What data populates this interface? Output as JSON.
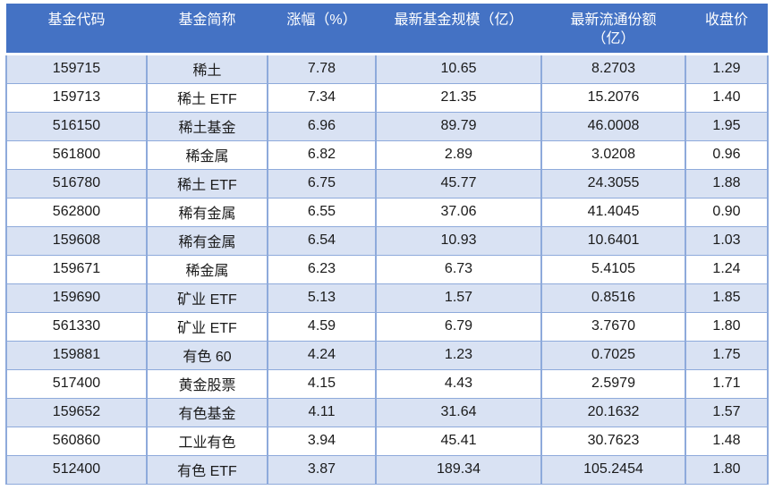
{
  "chart_data": {
    "type": "table",
    "columns": [
      "基金代码",
      "基金简称",
      "涨幅（%）",
      "最新基金规模（亿）",
      "最新流通份额\n（亿）",
      "收盘价"
    ],
    "rows": [
      [
        "159715",
        "稀土",
        "7.78",
        "10.65",
        "8.2703",
        "1.29"
      ],
      [
        "159713",
        "稀土 ETF",
        "7.34",
        "21.35",
        "15.2076",
        "1.40"
      ],
      [
        "516150",
        "稀土基金",
        "6.96",
        "89.79",
        "46.0008",
        "1.95"
      ],
      [
        "561800",
        "稀金属",
        "6.82",
        "2.89",
        "3.0208",
        "0.96"
      ],
      [
        "516780",
        "稀土 ETF",
        "6.75",
        "45.77",
        "24.3055",
        "1.88"
      ],
      [
        "562800",
        "稀有金属",
        "6.55",
        "37.06",
        "41.4045",
        "0.90"
      ],
      [
        "159608",
        "稀有金属",
        "6.54",
        "10.93",
        "10.6401",
        "1.03"
      ],
      [
        "159671",
        "稀金属",
        "6.23",
        "6.73",
        "5.4105",
        "1.24"
      ],
      [
        "159690",
        "矿业 ETF",
        "5.13",
        "1.57",
        "0.8516",
        "1.85"
      ],
      [
        "561330",
        "矿业 ETF",
        "4.59",
        "6.79",
        "3.7670",
        "1.80"
      ],
      [
        "159881",
        "有色 60",
        "4.24",
        "1.23",
        "0.7025",
        "1.75"
      ],
      [
        "517400",
        "黄金股票",
        "4.15",
        "4.43",
        "2.5979",
        "1.71"
      ],
      [
        "159652",
        "有色基金",
        "4.11",
        "31.64",
        "20.1632",
        "1.57"
      ],
      [
        "560860",
        "工业有色",
        "3.94",
        "45.41",
        "30.7623",
        "1.48"
      ],
      [
        "512400",
        "有色 ETF",
        "3.87",
        "189.34",
        "105.2454",
        "1.80"
      ]
    ]
  },
  "colors": {
    "header_bg": "#4472C4",
    "header_text": "#FFFFFF",
    "band_bg": "#D9E2F3",
    "row_bg": "#FFFFFF",
    "border": "#8EAADB",
    "text": "#1A1A1A"
  }
}
